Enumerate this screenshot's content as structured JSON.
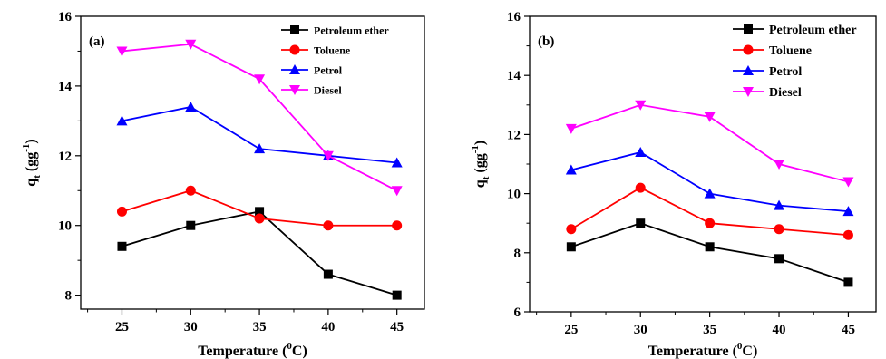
{
  "chart_data": [
    {
      "type": "line",
      "panel_label": "(a)",
      "x": [
        25,
        30,
        35,
        40,
        45
      ],
      "xlabel": "Temperature (",
      "xlabel_sup": "0",
      "xlabel_end": "C)",
      "ylabel": "q",
      "ylabel_sub": "t",
      "ylabel_mid": " (gg",
      "ylabel_sup": "-1",
      "ylabel_end": ")",
      "xlim": [
        22,
        47
      ],
      "ylim": [
        7.6,
        16
      ],
      "xticks": [
        25,
        30,
        35,
        40,
        45
      ],
      "yticks": [
        8,
        10,
        12,
        14,
        16
      ],
      "grid": false,
      "legend_position": "top-right",
      "series": [
        {
          "name": "Petroleum ether",
          "color": "#000000",
          "marker": "square",
          "values": [
            9.4,
            10.0,
            10.4,
            8.6,
            8.0
          ]
        },
        {
          "name": "Toluene",
          "color": "#ff0000",
          "marker": "circle",
          "values": [
            10.4,
            11.0,
            10.2,
            10.0,
            10.0
          ]
        },
        {
          "name": "Petrol",
          "color": "#0000ff",
          "marker": "triangle-up",
          "values": [
            13.0,
            13.4,
            12.2,
            12.0,
            11.8
          ]
        },
        {
          "name": "Diesel",
          "color": "#ff00ff",
          "marker": "triangle-down",
          "values": [
            15.0,
            15.2,
            14.2,
            12.0,
            11.0
          ]
        }
      ]
    },
    {
      "type": "line",
      "panel_label": "(b)",
      "x": [
        25,
        30,
        35,
        40,
        45
      ],
      "xlabel": "Temperature (",
      "xlabel_sup": "0",
      "xlabel_end": "C)",
      "ylabel": "q",
      "ylabel_sub": "t",
      "ylabel_mid": " (gg",
      "ylabel_sup": "-1",
      "ylabel_end": ")",
      "xlim": [
        22,
        47
      ],
      "ylim": [
        6,
        16
      ],
      "xticks": [
        25,
        30,
        35,
        40,
        45
      ],
      "yticks": [
        6,
        8,
        10,
        12,
        14,
        16
      ],
      "grid": false,
      "legend_position": "top-right",
      "series": [
        {
          "name": "Petroleum ether",
          "color": "#000000",
          "marker": "square",
          "values": [
            8.2,
            9.0,
            8.2,
            7.8,
            7.0
          ]
        },
        {
          "name": "Toluene",
          "color": "#ff0000",
          "marker": "circle",
          "values": [
            8.8,
            10.2,
            9.0,
            8.8,
            8.6
          ]
        },
        {
          "name": "Petrol",
          "color": "#0000ff",
          "marker": "triangle-up",
          "values": [
            10.8,
            11.4,
            10.0,
            9.6,
            9.4
          ]
        },
        {
          "name": "Diesel",
          "color": "#ff00ff",
          "marker": "triangle-down",
          "values": [
            12.2,
            13.0,
            12.6,
            11.0,
            10.4
          ]
        }
      ]
    }
  ]
}
